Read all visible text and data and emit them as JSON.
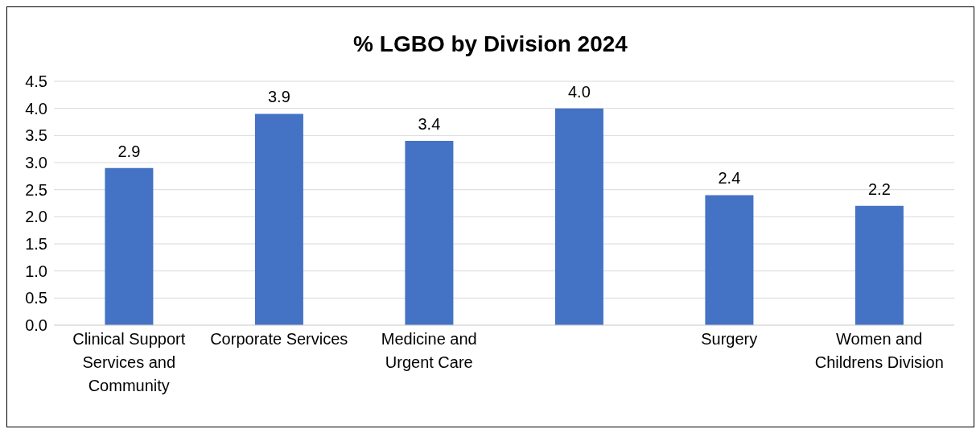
{
  "chart_data": {
    "type": "bar",
    "title": "% LGBO by Division 2024",
    "categories": [
      "Clinical Support Services and Community",
      "Corporate Services",
      "Medicine and Urgent Care",
      null,
      "Surgery",
      "Women and Childrens Division"
    ],
    "values": [
      2.9,
      3.9,
      3.4,
      4.0,
      2.4,
      2.2
    ],
    "value_labels": [
      "2.9",
      "3.9",
      "3.4",
      "4.0",
      "2.4",
      "2.2"
    ],
    "color": "#4472c4",
    "ylim": [
      0,
      4.5
    ],
    "yticks": [
      {
        "value": 0,
        "label": "0.0"
      },
      {
        "value": 0.5,
        "label": "0.5"
      },
      {
        "value": 1,
        "label": "1.0"
      },
      {
        "value": 1.5,
        "label": "1.5"
      },
      {
        "value": 2,
        "label": "2.0"
      },
      {
        "value": 2.5,
        "label": "2.5"
      },
      {
        "value": 3,
        "label": "3.0"
      },
      {
        "value": 3.5,
        "label": "3.5"
      },
      {
        "value": 4,
        "label": "4.0"
      },
      {
        "value": 4.5,
        "label": "4.5"
      }
    ],
    "grid": "y"
  }
}
